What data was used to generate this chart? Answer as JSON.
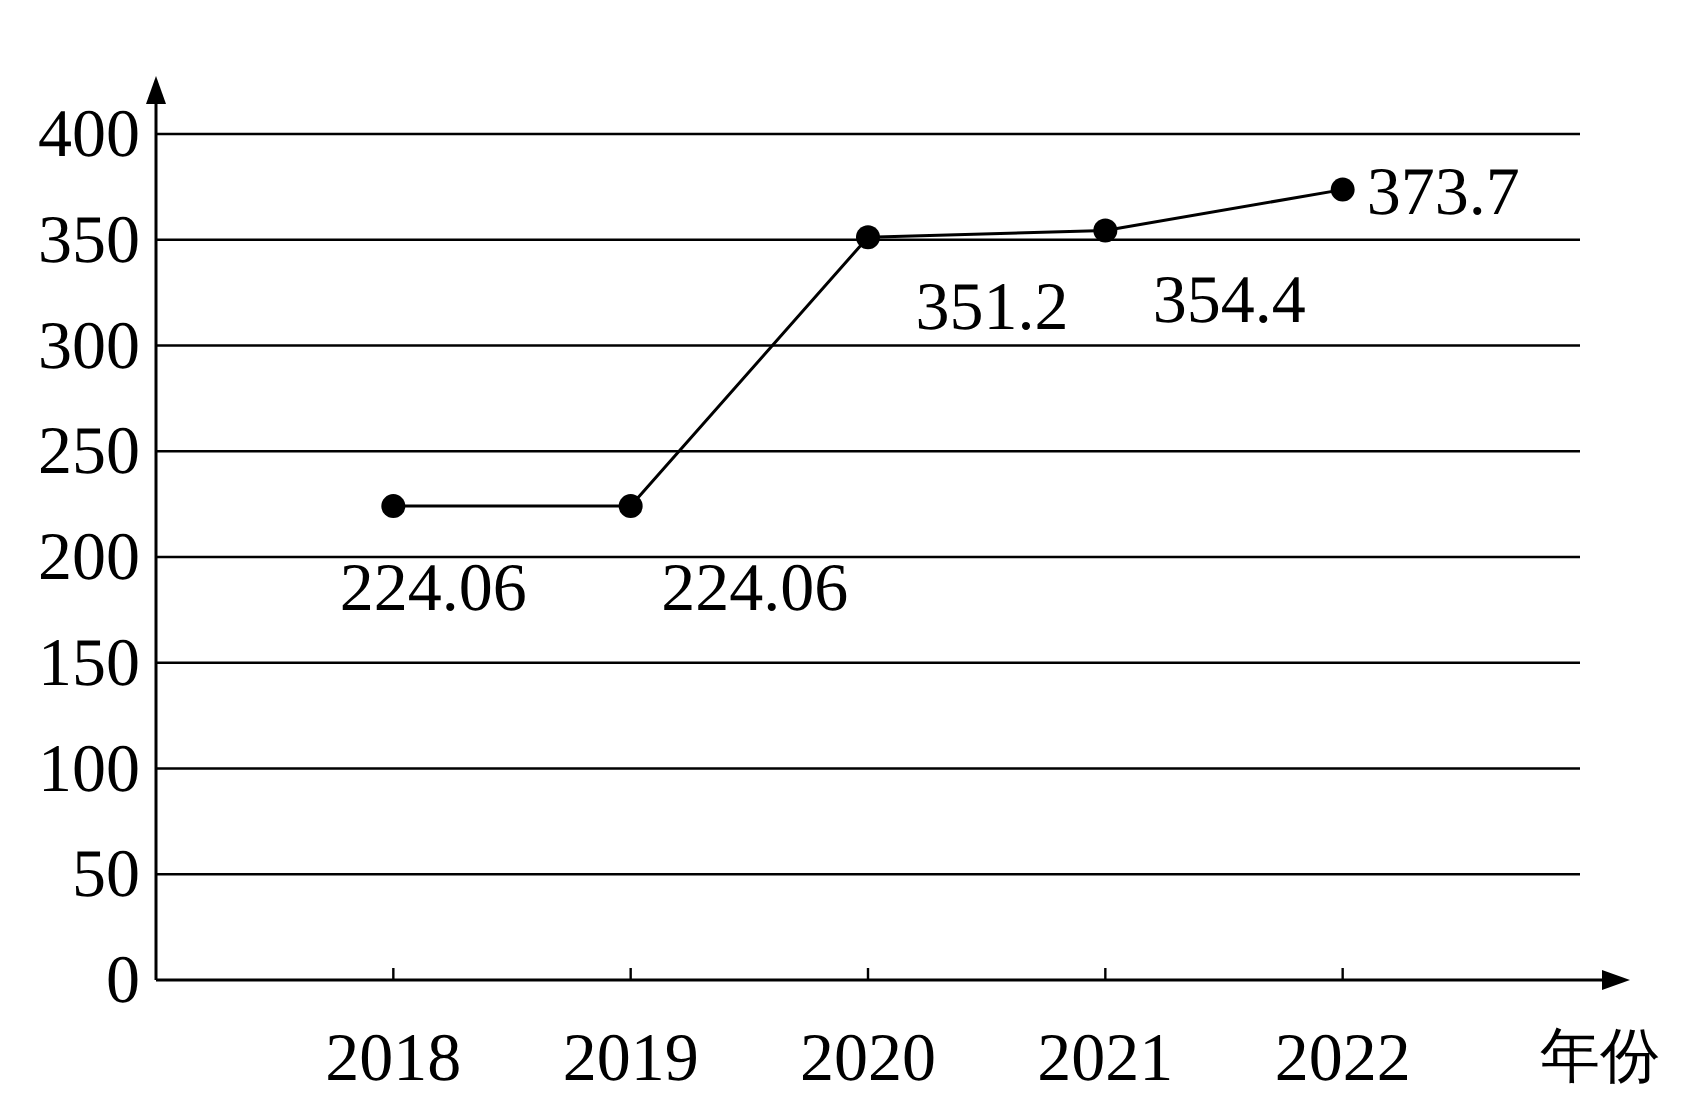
{
  "chart_data": {
    "type": "line",
    "xlabel": "年份",
    "categories": [
      "2018",
      "2019",
      "2020",
      "2021",
      "2022"
    ],
    "series": [
      {
        "color": "#000000",
        "values": [
          224.06,
          224.06,
          351.2,
          354.4,
          373.7
        ]
      }
    ],
    "ylim": [
      0,
      400
    ],
    "yticks": [
      0,
      50,
      100,
      150,
      200,
      250,
      300,
      350,
      400
    ],
    "grid": "y",
    "marker": "circle",
    "line_style": "solid",
    "data_labels": true
  }
}
